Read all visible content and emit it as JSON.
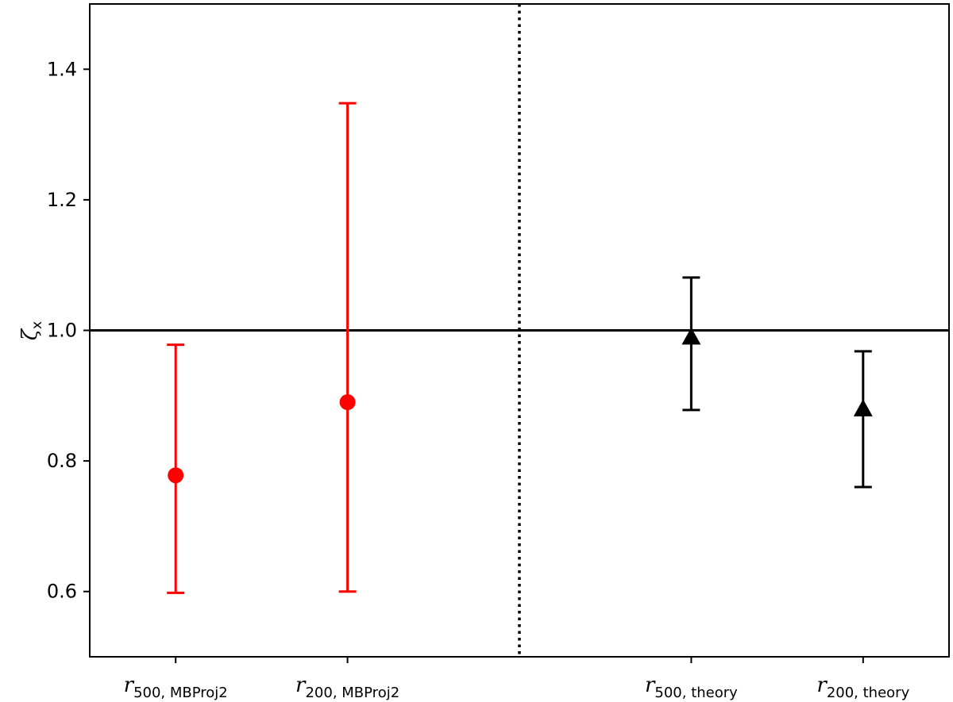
{
  "chart_data": {
    "type": "scatter",
    "ylabel": "ζ",
    "ylabel_sub": "x",
    "ylim": [
      0.5,
      1.5
    ],
    "yticks": [
      0.6,
      0.8,
      1.0,
      1.2,
      1.4
    ],
    "ytick_labels": [
      "0.6",
      "0.8",
      "1.0",
      "1.2",
      "1.4"
    ],
    "categories": [
      {
        "main": "r",
        "sub": "500, MBProj2"
      },
      {
        "main": "r",
        "sub": "200, MBProj2"
      },
      {
        "main": "r",
        "sub": "500, theory"
      },
      {
        "main": "r",
        "sub": "200, theory"
      }
    ],
    "x_positions": [
      0,
      1,
      3,
      4
    ],
    "xlim": [
      -0.5,
      4.5
    ],
    "series": [
      {
        "marker": "circle",
        "color": "#ff0000",
        "points": [
          {
            "x": 0,
            "y": 0.778,
            "lower": 0.598,
            "upper": 0.978
          },
          {
            "x": 1,
            "y": 0.89,
            "lower": 0.6,
            "upper": 1.348
          }
        ]
      },
      {
        "marker": "triangle",
        "color": "#000000",
        "points": [
          {
            "x": 3,
            "y": 0.99,
            "lower": 0.878,
            "upper": 1.081
          },
          {
            "x": 4,
            "y": 0.88,
            "lower": 0.76,
            "upper": 0.968
          }
        ]
      }
    ],
    "hlines": [
      {
        "y": 1.0,
        "color": "#000000",
        "style": "solid"
      }
    ],
    "vlines": [
      {
        "x": 2,
        "color": "#000000",
        "style": "dotted"
      }
    ],
    "grid": false,
    "legend": "none"
  }
}
